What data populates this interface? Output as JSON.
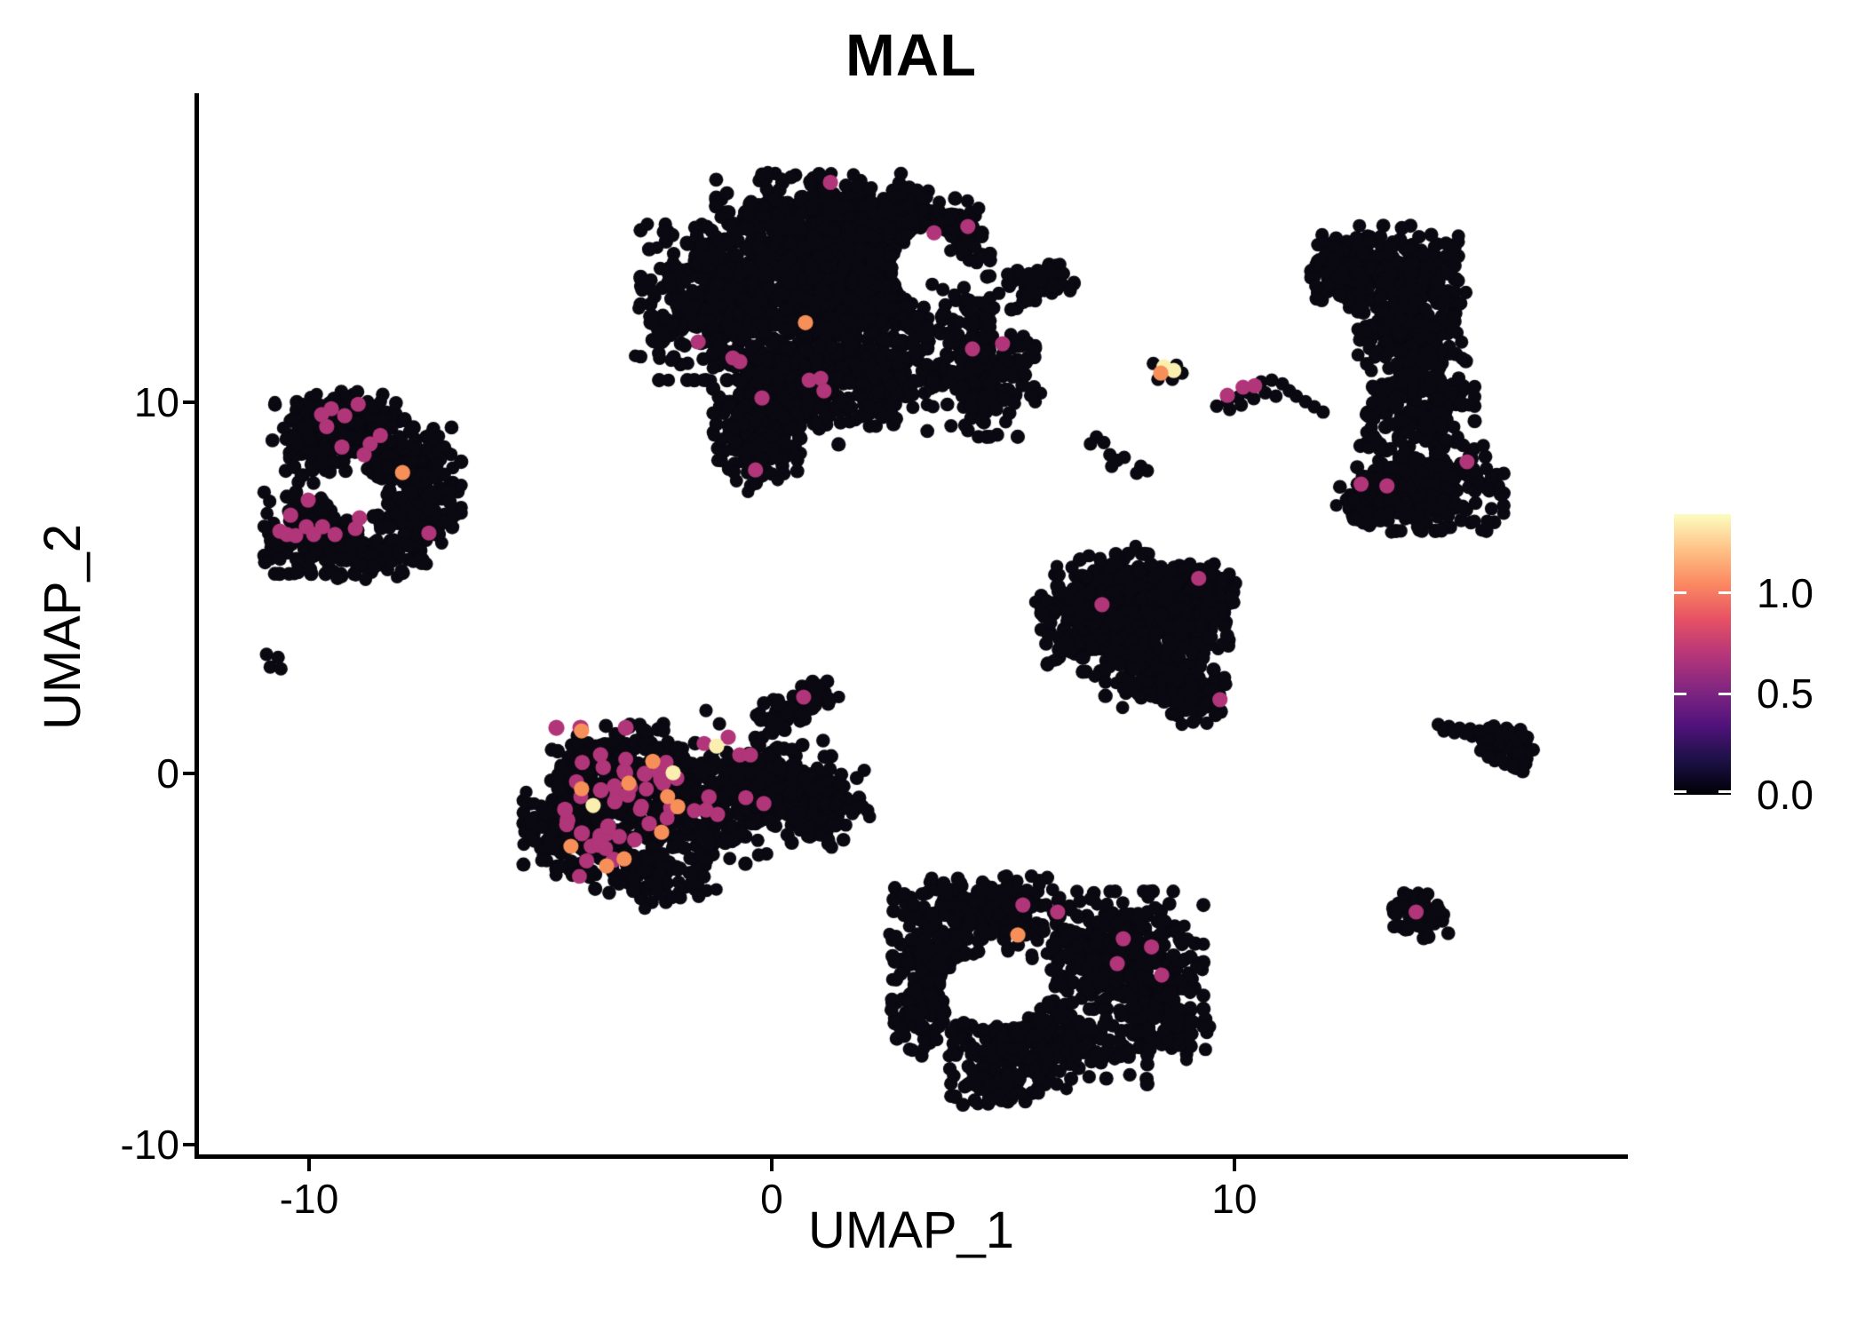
{
  "title": "MAL",
  "axes": {
    "x": {
      "label": "UMAP_1",
      "ticks": [
        {
          "value": -10,
          "label": "-10"
        },
        {
          "value": 0,
          "label": "0"
        },
        {
          "value": 10,
          "label": "10"
        }
      ]
    },
    "y": {
      "label": "UMAP_2",
      "ticks": [
        {
          "value": 10,
          "label": "10"
        },
        {
          "value": 0,
          "label": "0"
        },
        {
          "value": -10,
          "label": "-10"
        }
      ]
    }
  },
  "legend": {
    "max_value": 1.39,
    "ticks": [
      {
        "value": 1.0,
        "label": "1.0"
      },
      {
        "value": 0.5,
        "label": "0.5"
      },
      {
        "value": 0.0,
        "label": "0.0"
      }
    ],
    "gradient": [
      "#000004",
      "#1D1147",
      "#51127C",
      "#822681",
      "#B63679",
      "#E65164",
      "#FB8861",
      "#FEC287",
      "#FCFDBF"
    ]
  },
  "point_colors": {
    "zero": "#0A0810",
    "mid": "#B03579",
    "high": "#F78F58",
    "top": "#FBEFB0"
  },
  "chart_data": {
    "type": "scatter",
    "title": "MAL",
    "xlabel": "UMAP_1",
    "ylabel": "UMAP_2",
    "xlim": [
      -12.42,
      18.45
    ],
    "ylim": [
      -10.31,
      18.33
    ],
    "x_ticks": [
      -10,
      0,
      10
    ],
    "y_ticks": [
      -10,
      0,
      10
    ],
    "grid": false,
    "colorbar": {
      "label_values": [
        0.0,
        0.5,
        1.0
      ],
      "max": 1.39,
      "colormap": "magma"
    },
    "clusters": [
      {
        "name": "top-center-large",
        "color": "zero",
        "blobs": [
          [
            1.55,
            12.82,
            2.88,
            2.03,
            700
          ],
          [
            -1.04,
            12.7,
            1.63,
            1.91,
            420
          ],
          [
            1.55,
            14.9,
            2.5,
            1.15,
            330
          ],
          [
            3.28,
            14.5,
            1.15,
            0.72,
            150
          ],
          [
            2.42,
            13.66,
            0.77,
            1.08,
            140
          ],
          [
            0.21,
            10.19,
            1.34,
            1.2,
            260
          ],
          [
            -0.27,
            8.76,
            0.81,
            0.91,
            130
          ],
          [
            4.53,
            10.91,
            1.06,
            1.67,
            220
          ],
          [
            5.82,
            13.3,
            0.65,
            0.38,
            55
          ],
          [
            2.32,
            10.55,
            1.06,
            1.08,
            170
          ]
        ],
        "holes": [
          [
            3.38,
            13.66,
            0.77,
            1.08
          ]
        ]
      },
      {
        "name": "left-mid",
        "color": "zero",
        "blobs": [
          [
            -9.1,
            9.59,
            1.06,
            0.67,
            130
          ],
          [
            -9.87,
            8.88,
            0.86,
            0.96,
            130
          ],
          [
            -7.95,
            8.4,
            0.96,
            0.84,
            110
          ],
          [
            -7.66,
            7.08,
            0.86,
            1.2,
            140
          ],
          [
            -9.96,
            6.48,
            0.92,
            1.0,
            150
          ],
          [
            -8.62,
            5.89,
            1.06,
            0.6,
            80
          ]
        ],
        "holes": [
          [
            -8.96,
            7.61,
            0.65,
            0.57
          ]
        ]
      },
      {
        "name": "center-left-dense",
        "color": "zero",
        "blobs": [
          [
            -3.24,
            0.02,
            1.44,
            1.2,
            260
          ],
          [
            -1.71,
            -0.93,
            1.63,
            1.44,
            300
          ],
          [
            -4.2,
            -1.41,
            1.06,
            1.2,
            180
          ],
          [
            0.02,
            -0.22,
            1.15,
            1.08,
            180
          ],
          [
            1.17,
            -0.93,
            0.86,
            0.96,
            110
          ],
          [
            -2.67,
            -2.73,
            1.15,
            0.67,
            90
          ],
          [
            0.21,
            1.58,
            0.58,
            0.53,
            40
          ],
          [
            0.83,
            2.13,
            0.42,
            0.38,
            30
          ]
        ],
        "holes": []
      },
      {
        "name": "right-crescent",
        "color": "zero",
        "blobs": [
          [
            13.26,
            13.66,
            1.44,
            1.0,
            240
          ],
          [
            12.3,
            13.42,
            0.58,
            0.72,
            70
          ],
          [
            13.84,
            11.99,
            1.06,
            0.96,
            180
          ],
          [
            14.03,
            10.07,
            1.06,
            1.2,
            180
          ],
          [
            14.13,
            7.8,
            1.54,
            1.15,
            260
          ],
          [
            12.98,
            7.44,
            0.67,
            0.72,
            70
          ]
        ],
        "holes": []
      },
      {
        "name": "center-right-triangle",
        "color": "zero",
        "blobs": [
          [
            7.41,
            4.86,
            1.44,
            0.96,
            220
          ],
          [
            8.85,
            4.38,
            1.06,
            1.15,
            200
          ],
          [
            6.93,
            3.8,
            0.96,
            0.96,
            150
          ],
          [
            8.27,
            2.78,
            0.96,
            0.91,
            150
          ],
          [
            9.14,
            2.06,
            0.61,
            0.67,
            80
          ],
          [
            9.46,
            5.1,
            0.48,
            0.48,
            50
          ]
        ],
        "holes": []
      },
      {
        "name": "right-arrow",
        "color": "zero",
        "blobs": [
          [
            15.91,
            0.86,
            0.58,
            0.43,
            60
          ],
          [
            16.14,
            0.38,
            0.35,
            0.29,
            25
          ],
          [
            15.53,
            1.03,
            0.27,
            0.24,
            15
          ]
        ],
        "holes": []
      },
      {
        "name": "bottom-center",
        "color": "zero",
        "blobs": [
          [
            4.43,
            -3.61,
            1.63,
            0.77,
            200
          ],
          [
            7.22,
            -4.76,
            1.92,
            1.44,
            330
          ],
          [
            3.67,
            -5.0,
            0.96,
            1.08,
            140
          ],
          [
            5.59,
            -7.27,
            2.3,
            1.0,
            280
          ],
          [
            4.82,
            -8.47,
            0.86,
            0.43,
            70
          ],
          [
            8.46,
            -6.56,
            0.86,
            0.91,
            110
          ],
          [
            3.19,
            -6.44,
            0.58,
            0.96,
            70
          ]
        ],
        "holes": [
          [
            4.82,
            -5.77,
            1.19,
            1.0
          ]
        ]
      },
      {
        "name": "bottom-right-small",
        "color": "zero",
        "blobs": [
          [
            14.03,
            -3.83,
            0.54,
            0.62,
            60
          ]
        ],
        "holes": []
      },
      {
        "name": "center-left-dense-expressing",
        "color": "mid",
        "blobs": [
          [
            -3.15,
            -0.22,
            1.63,
            1.32,
            30
          ],
          [
            -3.44,
            -1.77,
            1.25,
            0.91,
            16
          ]
        ],
        "holes": []
      }
    ],
    "points": [
      [
        3.47,
        13.18
      ],
      [
        3.7,
        13.04
      ],
      [
        3.95,
        12.89
      ],
      [
        4.2,
        12.78
      ],
      [
        4.43,
        12.68
      ],
      [
        4.66,
        12.61
      ],
      [
        4.91,
        12.94
      ],
      [
        5.14,
        13.13
      ],
      [
        4.72,
        12.82
      ],
      [
        6.45,
        13.01
      ],
      [
        -10.92,
        3.21
      ],
      [
        -10.67,
        3.13
      ],
      [
        -10.84,
        2.87
      ],
      [
        -10.61,
        2.82
      ],
      [
        7.02,
        9.07
      ],
      [
        7.18,
        8.92
      ],
      [
        6.89,
        8.88
      ],
      [
        7.31,
        8.59
      ],
      [
        7.47,
        8.44
      ],
      [
        7.62,
        8.52
      ],
      [
        7.35,
        8.28
      ],
      [
        7.98,
        8.28
      ],
      [
        8.12,
        8.16
      ],
      [
        7.89,
        8.09
      ],
      [
        8.25,
        11.05
      ],
      [
        8.75,
        11.0
      ],
      [
        8.35,
        10.62
      ],
      [
        8.66,
        10.62
      ],
      [
        8.87,
        10.79
      ],
      [
        9.62,
        9.9
      ],
      [
        9.85,
        10.02
      ],
      [
        10.08,
        10.14
      ],
      [
        10.31,
        10.26
      ],
      [
        10.58,
        10.55
      ],
      [
        10.81,
        10.6
      ],
      [
        11.04,
        10.5
      ],
      [
        11.19,
        10.31
      ],
      [
        11.34,
        10.17
      ],
      [
        11.54,
        10.02
      ],
      [
        11.73,
        9.88
      ],
      [
        11.92,
        9.74
      ],
      [
        10.67,
        10.26
      ],
      [
        10.9,
        10.17
      ],
      [
        10.42,
        10.1
      ],
      [
        10.15,
        9.93
      ],
      [
        9.9,
        9.81
      ],
      [
        14.41,
        1.32
      ],
      [
        14.64,
        1.27
      ],
      [
        14.87,
        1.22
      ],
      [
        15.1,
        1.2
      ],
      [
        15.3,
        1.15
      ],
      [
        14.53,
        1.15
      ],
      [
        14.76,
        1.1
      ],
      [
        14.99,
        1.08
      ],
      [
        15.33,
        0.62
      ],
      [
        15.49,
        0.45
      ],
      [
        -1.42,
        1.7
      ],
      [
        -1.13,
        1.34
      ]
    ],
    "highlights": [
      [
        -1.59,
        11.63,
        "mid"
      ],
      [
        -0.84,
        11.2,
        "mid"
      ],
      [
        -0.69,
        11.1,
        "mid"
      ],
      [
        0.81,
        10.6,
        "mid"
      ],
      [
        1.06,
        10.65,
        "mid"
      ],
      [
        1.13,
        10.31,
        "mid"
      ],
      [
        -0.21,
        10.12,
        "mid"
      ],
      [
        -0.35,
        8.18,
        "mid"
      ],
      [
        4.34,
        11.44,
        "mid"
      ],
      [
        4.99,
        11.58,
        "mid"
      ],
      [
        3.51,
        14.57,
        "mid"
      ],
      [
        4.24,
        14.74,
        "mid"
      ],
      [
        1.27,
        15.93,
        "mid"
      ],
      [
        0.73,
        12.15,
        "high"
      ],
      [
        -9.52,
        9.83,
        "mid"
      ],
      [
        -9.73,
        9.67,
        "mid"
      ],
      [
        -9.23,
        9.64,
        "mid"
      ],
      [
        -8.94,
        9.95,
        "mid"
      ],
      [
        -9.62,
        9.35,
        "mid"
      ],
      [
        -9.29,
        8.8,
        "mid"
      ],
      [
        -8.68,
        8.88,
        "mid"
      ],
      [
        -8.81,
        8.59,
        "mid"
      ],
      [
        -8.46,
        9.11,
        "mid"
      ],
      [
        -10.02,
        7.37,
        "mid"
      ],
      [
        -10.4,
        6.96,
        "mid"
      ],
      [
        -10.63,
        6.53,
        "mid"
      ],
      [
        -10.48,
        6.44,
        "mid"
      ],
      [
        -10.29,
        6.41,
        "mid"
      ],
      [
        -10.06,
        6.65,
        "mid"
      ],
      [
        -9.9,
        6.44,
        "mid"
      ],
      [
        -9.71,
        6.65,
        "mid"
      ],
      [
        -9.44,
        6.44,
        "mid"
      ],
      [
        -9.0,
        6.6,
        "mid"
      ],
      [
        -8.91,
        6.89,
        "mid"
      ],
      [
        -7.41,
        6.48,
        "mid"
      ],
      [
        -7.98,
        8.11,
        "high"
      ],
      [
        -1.67,
        -1.0,
        "mid"
      ],
      [
        -0.56,
        -0.65,
        "mid"
      ],
      [
        -0.17,
        -0.81,
        "mid"
      ],
      [
        0.69,
        2.06,
        "mid"
      ],
      [
        -1.46,
        0.81,
        "mid"
      ],
      [
        -0.94,
        0.98,
        "mid"
      ],
      [
        -0.69,
        0.5,
        "mid"
      ],
      [
        -0.46,
        0.5,
        "mid"
      ],
      [
        -1.17,
        -1.1,
        "mid"
      ],
      [
        -1.42,
        -0.98,
        "mid"
      ],
      [
        -4.11,
        1.15,
        "high"
      ],
      [
        -2.57,
        0.33,
        "high"
      ],
      [
        -3.09,
        -0.26,
        "high"
      ],
      [
        -4.11,
        -0.41,
        "high"
      ],
      [
        -2.25,
        -0.62,
        "high"
      ],
      [
        -2.03,
        -0.89,
        "high"
      ],
      [
        -2.38,
        -1.58,
        "high"
      ],
      [
        -4.34,
        -1.96,
        "high"
      ],
      [
        -3.19,
        -2.3,
        "high"
      ],
      [
        -3.57,
        -2.49,
        "high"
      ],
      [
        -2.13,
        0.02,
        "top"
      ],
      [
        -3.86,
        -0.86,
        "top"
      ],
      [
        -1.19,
        0.74,
        "top"
      ],
      [
        8.48,
        10.96,
        "top"
      ],
      [
        8.69,
        10.86,
        "top"
      ],
      [
        8.41,
        10.79,
        "high"
      ],
      [
        9.85,
        10.19,
        "mid"
      ],
      [
        10.19,
        10.41,
        "mid"
      ],
      [
        10.44,
        10.45,
        "mid"
      ],
      [
        12.74,
        7.8,
        "mid"
      ],
      [
        13.3,
        7.75,
        "mid"
      ],
      [
        15.03,
        8.4,
        "mid"
      ],
      [
        9.23,
        5.26,
        "mid"
      ],
      [
        7.14,
        4.55,
        "mid"
      ],
      [
        9.69,
        1.99,
        "mid"
      ],
      [
        5.43,
        -3.54,
        "mid"
      ],
      [
        6.18,
        -3.73,
        "mid"
      ],
      [
        7.6,
        -4.45,
        "mid"
      ],
      [
        8.21,
        -4.67,
        "mid"
      ],
      [
        7.47,
        -5.12,
        "mid"
      ],
      [
        8.43,
        -5.43,
        "mid"
      ],
      [
        5.32,
        -4.35,
        "high"
      ],
      [
        13.93,
        -3.73,
        "mid"
      ]
    ]
  }
}
